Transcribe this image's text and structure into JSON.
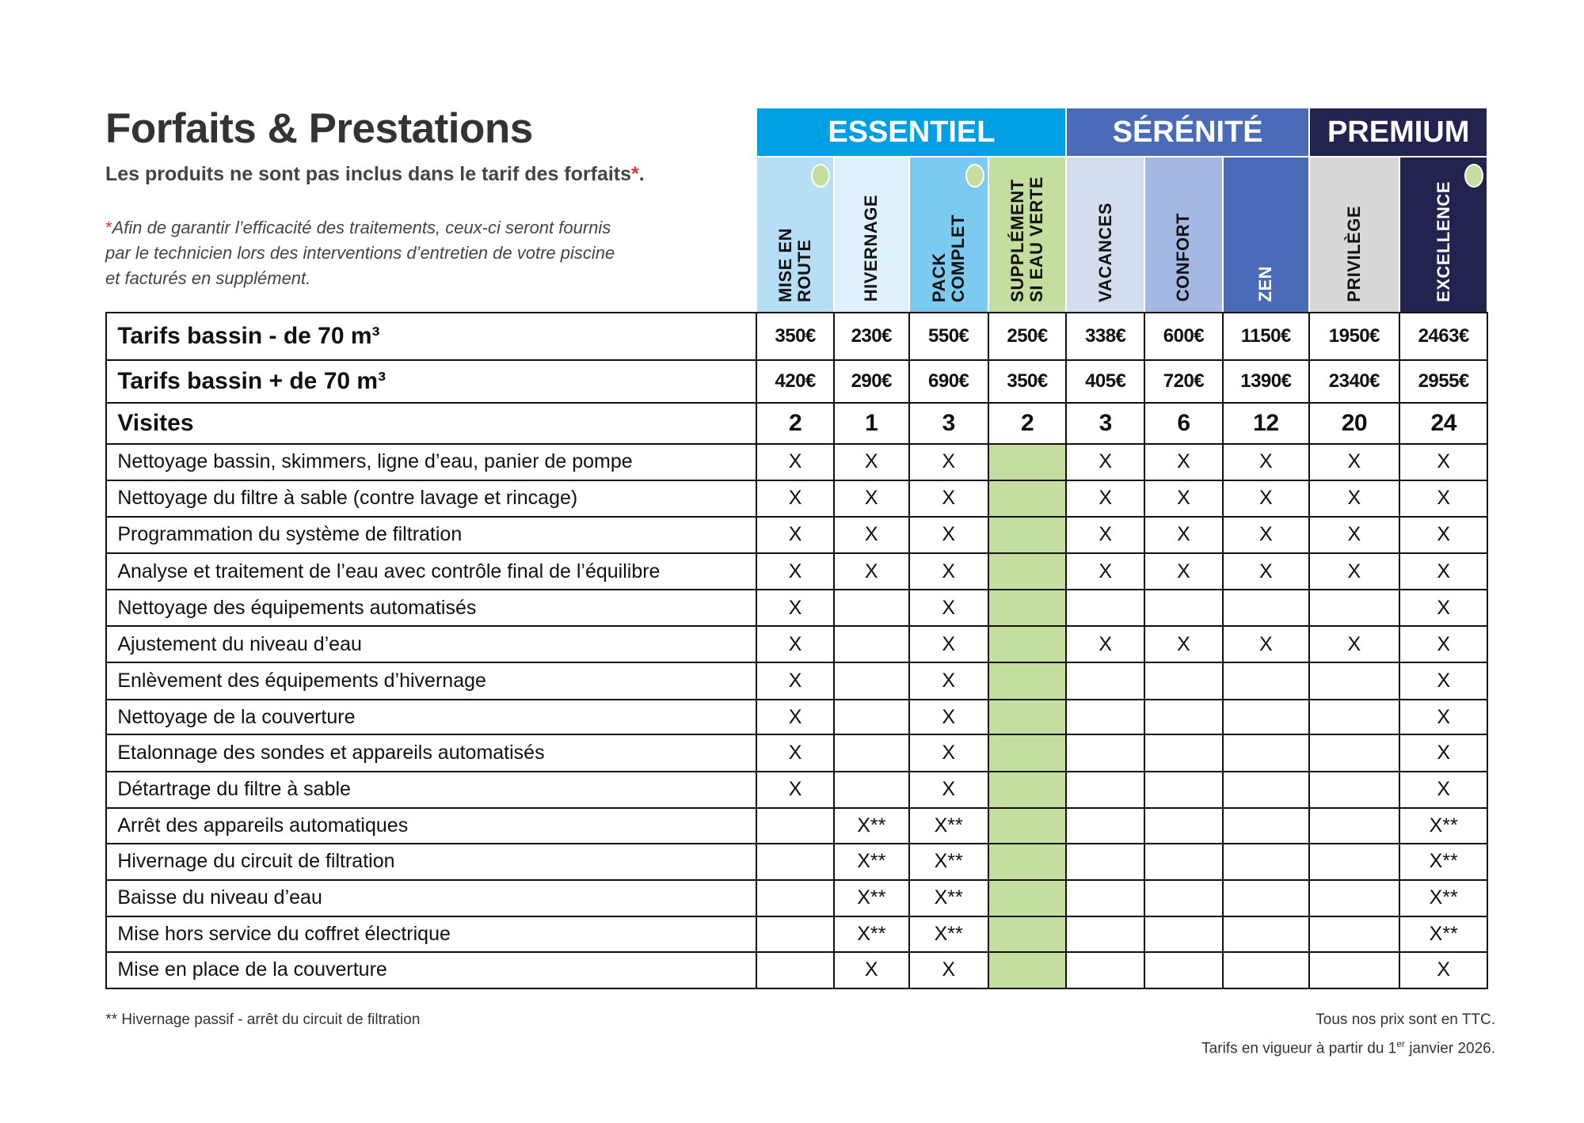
{
  "header": {
    "title": "Forfaits & Prestations",
    "subtitle": "Les produits ne sont pas inclus dans le tarif des forfaits",
    "subtitle_star": "*",
    "subtitle_end": ".",
    "note": {
      "star": "*",
      "lines": [
        "Afin de garantir l’efficacité des traitements, ceux-ci seront fournis",
        "par le technicien lors des interventions d’entretien de votre piscine",
        "et facturés en supplément."
      ]
    }
  },
  "table": {
    "groups": [
      {
        "name": "ESSENTIEL",
        "color": "#009fe3",
        "columns": [
          {
            "label": [
              "MISE EN",
              "ROUTE"
            ],
            "color": "#b6def6",
            "dot": true
          },
          {
            "label": [
              "HIVERNAGE"
            ],
            "color": "#def0fb"
          },
          {
            "label": [
              "PACK",
              "COMPLET"
            ],
            "color": "#7ccaf0",
            "dot": true
          },
          {
            "label": [
              "SUPPLÉMENT",
              "SI EAU VERTE"
            ],
            "color": "#c4dea0",
            "highlight": true
          }
        ]
      },
      {
        "name": "SÉRÉNITÉ",
        "color": "#4a6bb7",
        "columns": [
          {
            "label": [
              "VACANCES"
            ],
            "color": "#d4ddf0"
          },
          {
            "label": [
              "CONFORT"
            ],
            "color": "#a3b8e2"
          },
          {
            "label": [
              "ZEN"
            ],
            "color": "#4a6bb7",
            "text_color": "#ffffff"
          }
        ]
      },
      {
        "name": "PREMIUM",
        "color": "#22234e",
        "columns": [
          {
            "label": [
              "PRIVILÈGE"
            ],
            "color": "#d8d8d8"
          },
          {
            "label": [
              "EXCELLENCE"
            ],
            "color": "#22234e",
            "text_color": "#ffffff",
            "dot": true
          }
        ]
      }
    ],
    "main_rows": [
      {
        "label": "Tarifs bassin - de 70 m³",
        "values": [
          "350€",
          "230€",
          "550€",
          "250€",
          "338€",
          "600€",
          "1150€",
          "1950€",
          "2463€"
        ]
      },
      {
        "label": "Tarifs bassin + de 70 m³",
        "values": [
          "420€",
          "290€",
          "690€",
          "350€",
          "405€",
          "720€",
          "1390€",
          "2340€",
          "2955€"
        ]
      },
      {
        "label": "Visites",
        "values": [
          2,
          1,
          3,
          2,
          3,
          6,
          12,
          20,
          24
        ]
      }
    ],
    "service_rows": [
      {
        "label": "Nettoyage bassin, skimmers, ligne d’eau, panier de pompe",
        "values": [
          "X",
          "X",
          "X",
          null,
          "X",
          "X",
          "X",
          "X",
          "X"
        ]
      },
      {
        "label": "Nettoyage du filtre à sable (contre lavage et rincage)",
        "values": [
          "X",
          "X",
          "X",
          null,
          "X",
          "X",
          "X",
          "X",
          "X"
        ]
      },
      {
        "label": "Programmation du système de filtration",
        "values": [
          "X",
          "X",
          "X",
          null,
          "X",
          "X",
          "X",
          "X",
          "X"
        ]
      },
      {
        "label": "Analyse et traitement de l’eau avec contrôle final de l’équilibre",
        "values": [
          "X",
          "X",
          "X",
          null,
          "X",
          "X",
          "X",
          "X",
          "X"
        ]
      },
      {
        "label": "Nettoyage des équipements automatisés",
        "values": [
          "X",
          null,
          "X",
          null,
          null,
          null,
          null,
          null,
          "X"
        ]
      },
      {
        "label": "Ajustement du niveau d’eau",
        "values": [
          "X",
          null,
          "X",
          null,
          "X",
          "X",
          "X",
          "X",
          "X"
        ]
      },
      {
        "label": "Enlèvement des équipements d’hivernage",
        "values": [
          "X",
          null,
          "X",
          null,
          null,
          null,
          null,
          null,
          "X"
        ]
      },
      {
        "label": "Nettoyage de la couverture",
        "values": [
          "X",
          null,
          "X",
          null,
          null,
          null,
          null,
          null,
          "X"
        ]
      },
      {
        "label": "Etalonnage des sondes et appareils automatisés",
        "values": [
          "X",
          null,
          "X",
          null,
          null,
          null,
          null,
          null,
          "X"
        ]
      },
      {
        "label": "Détartrage du filtre à sable",
        "values": [
          "X",
          null,
          "X",
          null,
          null,
          null,
          null,
          null,
          "X"
        ]
      },
      {
        "label": "Arrêt des appareils automatiques",
        "values": [
          null,
          "X**",
          "X**",
          null,
          null,
          null,
          null,
          null,
          "X**"
        ]
      },
      {
        "label": "Hivernage du circuit de filtration",
        "values": [
          null,
          "X**",
          "X**",
          null,
          null,
          null,
          null,
          null,
          "X**"
        ]
      },
      {
        "label": "Baisse du niveau d’eau",
        "values": [
          null,
          "X**",
          "X**",
          null,
          null,
          null,
          null,
          null,
          "X**"
        ]
      },
      {
        "label": "Mise hors service du coffret électrique",
        "values": [
          null,
          "X**",
          "X**",
          null,
          null,
          null,
          null,
          null,
          "X**"
        ]
      },
      {
        "label": "Mise en place de la couverture",
        "values": [
          null,
          "X",
          "X",
          null,
          null,
          null,
          null,
          null,
          "X"
        ]
      }
    ]
  },
  "footer": {
    "note": "** Hivernage passif - arrêt du circuit de filtration",
    "right": [
      "Tous nos prix sont en TTC."
    ],
    "date": [
      "Tarifs en vigueur à partir du 1",
      "er",
      " janvier 2026."
    ]
  }
}
